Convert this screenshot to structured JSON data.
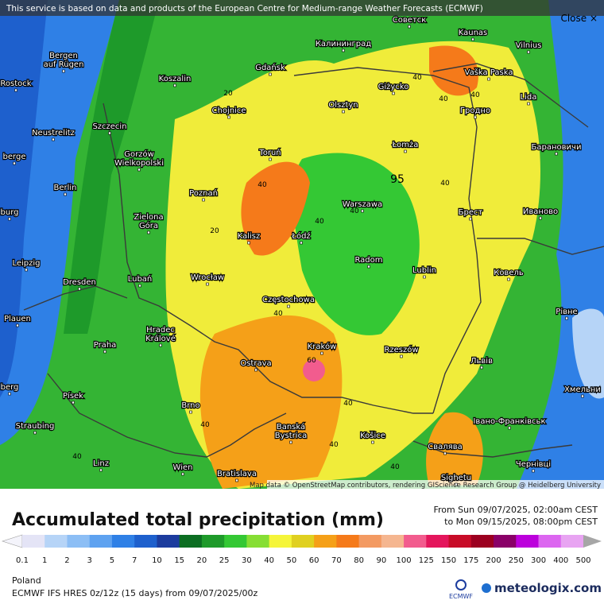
{
  "header": {
    "notice": "This service is based on data and products of the European Centre for Medium-range Weather Forecasts (ECMWF)",
    "close": "Close ×"
  },
  "map": {
    "cities": [
      [
        "Советск"
      ],
      [
        "Калининград"
      ],
      [
        "Kaunas"
      ],
      [
        "Vilnius"
      ],
      [
        "Bergen",
        "auf Rügen"
      ],
      [
        "Rostock"
      ],
      [
        "Koszalin"
      ],
      [
        "Gdańsk"
      ],
      [
        "Giżycko"
      ],
      [
        "Vaška Paska"
      ],
      [
        "Lida"
      ],
      [
        "Olsztyn"
      ],
      [
        "Гродно"
      ],
      [
        "Neustrelitz"
      ],
      [
        "Szczecin"
      ],
      [
        "Chojnice"
      ],
      [
        "Łomża"
      ],
      [
        "Барановичи"
      ],
      [
        "berge"
      ],
      [
        "Gorzów",
        "Wielkopolski"
      ],
      [
        "Toruń"
      ],
      [
        "Berlin"
      ],
      [
        "Poznań"
      ],
      [
        "Warszawa"
      ],
      [
        "Брест"
      ],
      [
        "Иваново"
      ],
      [
        "burg"
      ],
      [
        "Zielona",
        "Góra"
      ],
      [
        "Kalisz"
      ],
      [
        "Łódź"
      ],
      [
        "Radom"
      ],
      [
        "Lublin"
      ],
      [
        "Ковель"
      ],
      [
        "Leipzig"
      ],
      [
        "Dresden"
      ],
      [
        "Lubań"
      ],
      [
        "Wrocław"
      ],
      [
        "Częstochowa"
      ],
      [
        "Рівне"
      ],
      [
        "Plauen"
      ],
      [
        "Hradec",
        "Králové"
      ],
      [
        "Praha"
      ],
      [
        "Kraków"
      ],
      [
        "Rzeszów"
      ],
      [
        "Ostrava"
      ],
      [
        "Львів"
      ],
      [
        "berg"
      ],
      [
        "Хмельни"
      ],
      [
        "Písek"
      ],
      [
        "Brno"
      ],
      [
        "Banská",
        "Bystrica"
      ],
      [
        "Košice"
      ],
      [
        "Івано-Франківськ"
      ],
      [
        "Straubing"
      ],
      [
        "Свалява"
      ],
      [
        "Linz"
      ],
      [
        "Wien"
      ],
      [
        "Bratislava"
      ],
      [
        "Чернівці"
      ],
      [
        "Sighetu"
      ]
    ],
    "contour_labels": [
      "40",
      "40",
      "40",
      "20",
      "40",
      "40",
      "40",
      "20",
      "40",
      "40",
      "60",
      "40",
      "40",
      "40",
      "40",
      "40",
      "95"
    ],
    "attribution": "Map data © OpenStreetMap contributors, rendering GIScience Research Group @ Heidelberg University"
  },
  "legend": {
    "title": "Accumulated total precipitation (mm)",
    "period_from": "From Sun 09/07/2025, 02:00am CEST",
    "period_to": "to Mon 09/15/2025, 08:00pm CEST",
    "scale": [
      {
        "value": 0.1,
        "color": "#e4e4f6"
      },
      {
        "value": 1,
        "color": "#b6d4f7"
      },
      {
        "value": 2,
        "color": "#8cbef5"
      },
      {
        "value": 3,
        "color": "#5ea2f0"
      },
      {
        "value": 5,
        "color": "#2f80e6"
      },
      {
        "value": 7,
        "color": "#1e60cd"
      },
      {
        "value": 10,
        "color": "#1c3c9e"
      },
      {
        "value": 15,
        "color": "#0c6e22"
      },
      {
        "value": 20,
        "color": "#1e9a2a"
      },
      {
        "value": 25,
        "color": "#34c834"
      },
      {
        "value": 30,
        "color": "#86de34"
      },
      {
        "value": 40,
        "color": "#f5f53a"
      },
      {
        "value": 50,
        "color": "#e0d020"
      },
      {
        "value": 60,
        "color": "#f5a018"
      },
      {
        "value": 70,
        "color": "#f57a1a"
      },
      {
        "value": 80,
        "color": "#f39a62"
      },
      {
        "value": 90,
        "color": "#f5b690"
      },
      {
        "value": 100,
        "color": "#f25c8e"
      },
      {
        "value": 125,
        "color": "#e4165c"
      },
      {
        "value": 150,
        "color": "#c80c28"
      },
      {
        "value": 175,
        "color": "#9c0020"
      },
      {
        "value": 200,
        "color": "#8a0068"
      },
      {
        "value": 250,
        "color": "#bc00dc"
      },
      {
        "value": 300,
        "color": "#dc66f0"
      },
      {
        "value": 400,
        "color": "#e8a4f2"
      },
      {
        "value": 500,
        "color": "#a6a6a6"
      }
    ]
  },
  "footer": {
    "region": "Poland",
    "model": "ECMWF IFS HRES 0z/12z (15 days) from  09/07/2025/00z",
    "ecmwf": "ECMWF",
    "brand": "meteologix.com"
  }
}
